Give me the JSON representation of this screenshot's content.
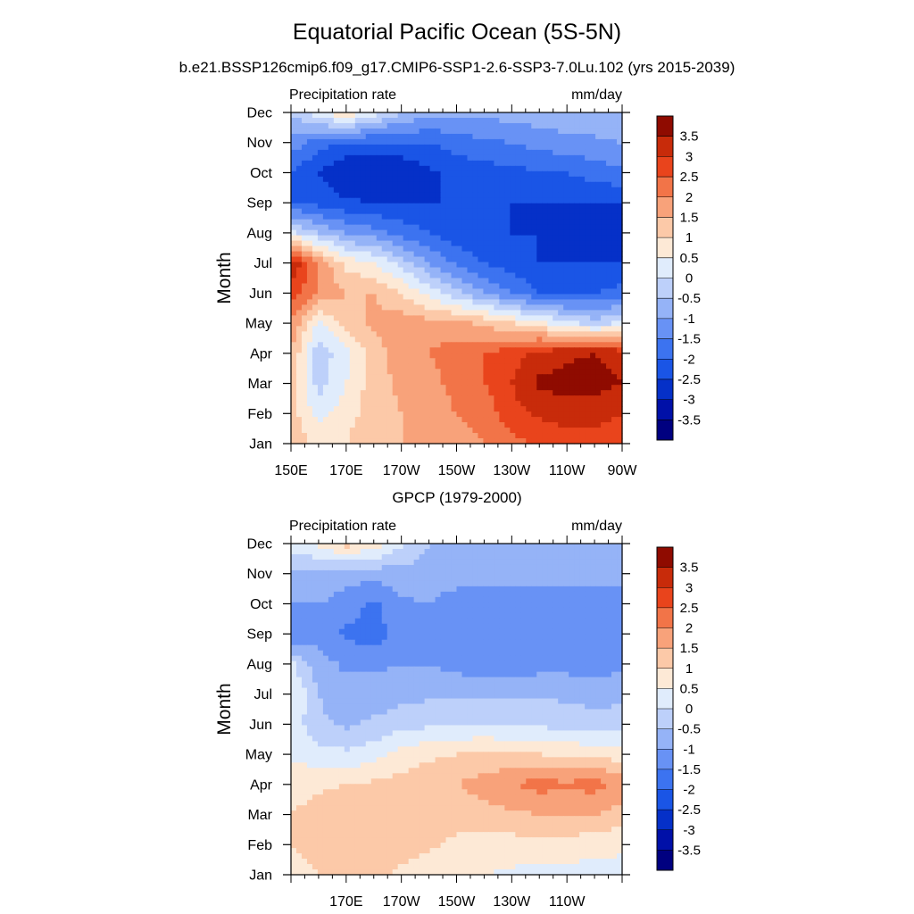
{
  "title": "Equatorial Pacific Ocean (5S-5N)",
  "subtitle": "b.e21.BSSP126cmip6.f09_g17.CMIP6-SSP1-2.6-SSP3-7.0Lu.102 (yrs 2015-2039)",
  "colorbar": {
    "levels": [
      -3.5,
      -3,
      -2.5,
      -2,
      -1.5,
      -1,
      -0.5,
      0,
      0.5,
      1,
      1.5,
      2,
      2.5,
      3,
      3.5
    ],
    "labels": [
      "3.5",
      "3",
      "2.5",
      "2",
      "1.5",
      "1",
      "0.5",
      "0",
      "-0.5",
      "-1",
      "-1.5",
      "-2",
      "-2.5",
      "-3",
      "-3.5"
    ],
    "colors": [
      "#000080",
      "#0010a8",
      "#0530c8",
      "#1a55e6",
      "#3c73f0",
      "#6892f5",
      "#95b3f7",
      "#bdd0fa",
      "#e0ecfc",
      "#fde9d6",
      "#fcc9a8",
      "#f8a27a",
      "#f27448",
      "#e9441c",
      "#c82b0a",
      "#8f0b00"
    ]
  },
  "chart_data": [
    {
      "type": "heatmap",
      "title": "",
      "label_left": "Precipitation rate",
      "label_right": "mm/day",
      "ylabel": "Month",
      "months": [
        "Jan",
        "Feb",
        "Mar",
        "Apr",
        "May",
        "Jun",
        "Jul",
        "Aug",
        "Sep",
        "Oct",
        "Nov",
        "Dec"
      ],
      "x_ticks": [
        "150E",
        "170E",
        "170W",
        "150W",
        "130W",
        "110W",
        "90W"
      ],
      "x_tick_values": [
        150,
        170,
        190,
        210,
        230,
        250,
        270
      ],
      "xlim": [
        150,
        270
      ],
      "lon": [
        150,
        160,
        170,
        180,
        190,
        200,
        210,
        220,
        230,
        240,
        250,
        260,
        270
      ],
      "values": [
        [
          1.5,
          0.8,
          1.0,
          1.5,
          1.5,
          1.6,
          1.8,
          2.0,
          2.3,
          2.6,
          2.8,
          2.8,
          2.6
        ],
        [
          1.2,
          0.3,
          0.8,
          1.2,
          1.5,
          1.7,
          2.0,
          2.2,
          2.8,
          3.1,
          3.2,
          3.2,
          3.0
        ],
        [
          1.3,
          -0.2,
          0.5,
          1.3,
          1.6,
          1.8,
          2.2,
          2.5,
          3.0,
          3.6,
          3.7,
          3.7,
          3.5
        ],
        [
          1.5,
          -0.3,
          0.3,
          1.2,
          1.8,
          2.0,
          2.3,
          2.5,
          2.8,
          3.2,
          3.4,
          3.5,
          3.3
        ],
        [
          2.0,
          0.3,
          1.3,
          1.6,
          1.8,
          1.7,
          1.6,
          1.4,
          1.0,
          0.6,
          0.2,
          -0.3,
          0.2
        ],
        [
          2.7,
          2.0,
          1.5,
          1.5,
          1.0,
          0.3,
          -0.3,
          -1.0,
          -1.5,
          -2.0,
          -2.2,
          -2.0,
          -1.8
        ],
        [
          3.5,
          2.0,
          0.8,
          0.5,
          -0.2,
          -1.0,
          -1.6,
          -2.0,
          -2.3,
          -2.5,
          -2.5,
          -2.5,
          -2.5
        ],
        [
          0.2,
          -0.5,
          -1.0,
          -1.3,
          -1.7,
          -2.0,
          -2.3,
          -2.4,
          -2.5,
          -2.5,
          -2.5,
          -2.5,
          -2.5
        ],
        [
          -2.0,
          -2.2,
          -2.4,
          -2.5,
          -2.5,
          -2.5,
          -2.5,
          -2.5,
          -2.5,
          -2.5,
          -2.5,
          -2.5,
          -2.5
        ],
        [
          -2.0,
          -2.5,
          -3.0,
          -3.0,
          -3.0,
          -2.6,
          -2.3,
          -2.2,
          -2.2,
          -2.0,
          -2.0,
          -1.8,
          -1.6
        ],
        [
          -1.2,
          -1.8,
          -2.0,
          -2.0,
          -2.0,
          -2.0,
          -1.8,
          -1.6,
          -1.5,
          -1.3,
          -1.2,
          -1.1,
          -1.0
        ],
        [
          -0.5,
          0.3,
          1.0,
          0.2,
          -0.5,
          -0.8,
          -0.8,
          -0.8,
          -0.8,
          -0.7,
          -0.6,
          -0.6,
          -0.5
        ]
      ]
    },
    {
      "type": "heatmap",
      "title": "GPCP (1979-2000)",
      "label_left": "Precipitation rate",
      "label_right": "mm/day",
      "ylabel": "Month",
      "months": [
        "Jan",
        "Feb",
        "Mar",
        "Apr",
        "May",
        "Jun",
        "Jul",
        "Aug",
        "Sep",
        "Oct",
        "Nov",
        "Dec"
      ],
      "x_ticks": [
        "170E",
        "170W",
        "150W",
        "130W",
        "110W"
      ],
      "x_tick_values": [
        170,
        190,
        210,
        230,
        250
      ],
      "xlim": [
        150,
        270
      ],
      "lon": [
        150,
        160,
        170,
        180,
        190,
        200,
        210,
        220,
        230,
        240,
        250,
        260,
        270
      ],
      "values": [
        [
          0.7,
          1.0,
          1.3,
          1.1,
          0.9,
          0.7,
          0.5,
          0.5,
          0.4,
          0.3,
          0.3,
          0.3,
          0.3
        ],
        [
          1.0,
          1.2,
          1.4,
          1.3,
          1.2,
          1.1,
          0.9,
          0.8,
          0.8,
          0.8,
          0.8,
          0.7,
          0.6
        ],
        [
          1.0,
          1.2,
          1.3,
          1.3,
          1.3,
          1.3,
          1.2,
          1.3,
          1.4,
          1.5,
          1.5,
          1.5,
          1.3
        ],
        [
          0.8,
          0.9,
          1.0,
          1.1,
          1.2,
          1.3,
          1.5,
          1.7,
          2.0,
          2.2,
          2.1,
          2.2,
          1.9
        ],
        [
          0.4,
          0.2,
          0.1,
          0.3,
          0.7,
          0.9,
          1.0,
          1.1,
          1.1,
          1.0,
          0.9,
          0.9,
          0.7
        ],
        [
          0.3,
          -0.4,
          -0.6,
          -0.4,
          -0.2,
          -0.1,
          0.0,
          0.0,
          -0.1,
          -0.1,
          -0.2,
          -0.3,
          -0.3
        ],
        [
          0.6,
          -0.5,
          -0.8,
          -0.8,
          -0.7,
          -0.6,
          -0.6,
          -0.6,
          -0.6,
          -0.6,
          -0.6,
          -0.7,
          -0.6
        ],
        [
          0.1,
          -0.8,
          -1.1,
          -1.1,
          -1.0,
          -1.0,
          -1.2,
          -1.3,
          -1.3,
          -1.2,
          -1.2,
          -1.3,
          -1.1
        ],
        [
          -1.5,
          -1.2,
          -1.6,
          -1.8,
          -1.2,
          -1.1,
          -1.4,
          -1.5,
          -1.4,
          -1.4,
          -1.2,
          -1.4,
          -1.2
        ],
        [
          -1.0,
          -1.0,
          -1.2,
          -1.6,
          -1.1,
          -1.0,
          -1.3,
          -1.4,
          -1.3,
          -1.2,
          -1.1,
          -1.3,
          -1.2
        ],
        [
          -0.7,
          -0.6,
          -0.8,
          -0.8,
          -0.7,
          -0.7,
          -0.7,
          -0.7,
          -0.8,
          -0.8,
          -0.9,
          -0.8,
          -0.8
        ],
        [
          0.3,
          0.6,
          1.2,
          0.8,
          0.1,
          -0.5,
          -0.6,
          -0.6,
          -0.6,
          -0.6,
          -0.6,
          -0.5,
          -0.5
        ]
      ]
    }
  ]
}
